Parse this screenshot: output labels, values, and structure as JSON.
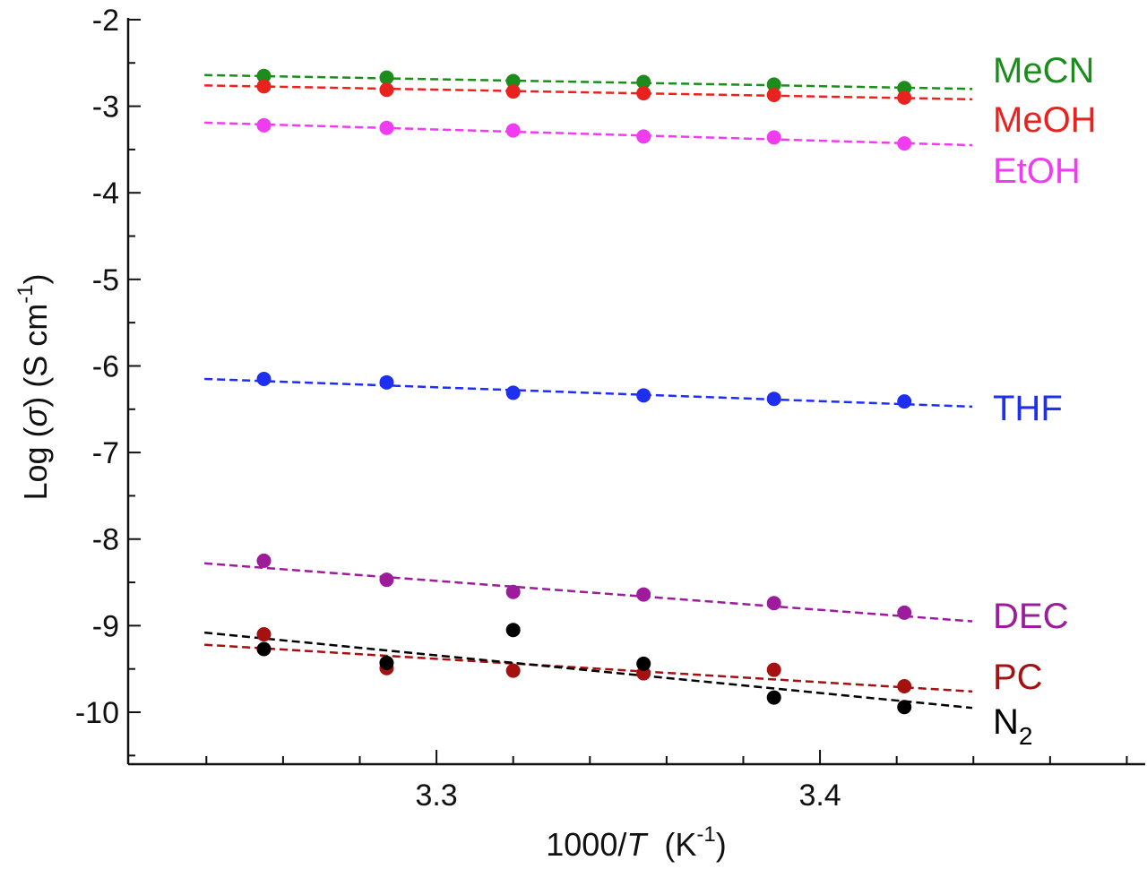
{
  "chart_data": {
    "type": "scatter",
    "title": "",
    "xlabel": {
      "prefix": "1000/",
      "italic": "T",
      "unit_open": "  (K",
      "sup": "-1",
      "unit_close": ")"
    },
    "ylabel": {
      "prefix": "Log (",
      "italic": "σ",
      "unit_open": ") (S cm",
      "sup": "-1",
      "unit_close": ")"
    },
    "xlim": [
      3.2196,
      3.4848
    ],
    "ylim": [
      -10.6,
      -1.98
    ],
    "x_major_ticks": [
      3.3,
      3.4
    ],
    "x_tick_labels": [
      "3.3",
      "3.4"
    ],
    "x_minor_step": 0.02,
    "y_major_ticks": [
      -2,
      -3,
      -4,
      -5,
      -6,
      -7,
      -8,
      -9,
      -10
    ],
    "y_tick_labels": [
      "-2",
      "-3",
      "-4",
      "-5",
      "-6",
      "-7",
      "-8",
      "-9",
      "-10"
    ],
    "y_minor_step": 0.5,
    "grid": false,
    "fit_x_range": [
      3.2395,
      3.4397
    ],
    "x": [
      3.255,
      3.287,
      3.32,
      3.354,
      3.388,
      3.422
    ],
    "series": [
      {
        "name": "MeCN",
        "sub": "",
        "color": "#1c8c1c",
        "values": [
          -2.65,
          -2.67,
          -2.71,
          -2.72,
          -2.75,
          -2.79
        ],
        "fit": [
          -2.64,
          -2.8
        ]
      },
      {
        "name": "MeOH",
        "sub": "",
        "color": "#e8231f",
        "values": [
          -2.77,
          -2.81,
          -2.83,
          -2.85,
          -2.87,
          -2.9
        ],
        "fit": [
          -2.76,
          -2.92
        ]
      },
      {
        "name": "EtOH",
        "sub": "",
        "color": "#f03cf0",
        "values": [
          -3.22,
          -3.25,
          -3.28,
          -3.35,
          -3.36,
          -3.43
        ],
        "fit": [
          -3.19,
          -3.45
        ]
      },
      {
        "name": "THF",
        "sub": "",
        "color": "#1f2ff0",
        "values": [
          -6.15,
          -6.19,
          -6.31,
          -6.34,
          -6.38,
          -6.41
        ],
        "fit": [
          -6.15,
          -6.47
        ]
      },
      {
        "name": "DEC",
        "sub": "",
        "color": "#9c1c9c",
        "values": [
          -8.25,
          -8.47,
          -8.61,
          -8.64,
          -8.74,
          -8.85
        ],
        "fit": [
          -8.28,
          -8.95
        ]
      },
      {
        "name": "PC",
        "sub": "",
        "color": "#a51010",
        "values": [
          -9.1,
          -9.49,
          -9.52,
          -9.55,
          -9.51,
          -9.7
        ],
        "fit": [
          -9.22,
          -9.76
        ]
      },
      {
        "name": "N",
        "sub": "2",
        "color": "#000000",
        "values": [
          -9.27,
          -9.43,
          -9.05,
          -9.44,
          -9.83,
          -9.94
        ],
        "fit": [
          -9.08,
          -9.95
        ]
      }
    ]
  }
}
